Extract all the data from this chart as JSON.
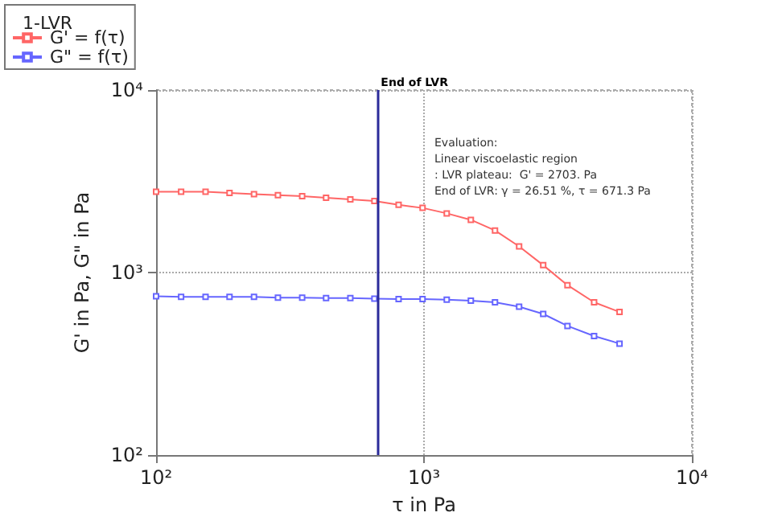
{
  "chart_data": {
    "type": "line",
    "xlabel": "τ in Pa",
    "ylabel": "G' in Pa, G\" in Pa",
    "legend_title": "1-LVR",
    "legend": "top left",
    "log": "xy",
    "grid": true,
    "marker": "square",
    "line_style": "solid",
    "x": [
      100,
      124,
      153,
      188,
      232,
      285,
      351,
      431,
      531,
      653,
      804,
      988,
      1216,
      1496,
      1841,
      2265,
      2786,
      3432,
      4315,
      5370
    ],
    "xlim": [
      100,
      10000
    ],
    "xticks": [
      {
        "value": 100,
        "label": "10²"
      },
      {
        "value": 1000,
        "label": "10³"
      },
      {
        "value": 10000,
        "label": "10⁴"
      }
    ],
    "ylim": [
      100,
      10000
    ],
    "yticks": [
      {
        "value": 100,
        "label": "10²"
      },
      {
        "value": 1000,
        "label": "10³"
      },
      {
        "value": 10000,
        "label": "10⁴"
      }
    ],
    "series": [
      {
        "name": "G' = f(τ)",
        "color": "#ff6666",
        "values": [
          2770,
          2770,
          2770,
          2730,
          2690,
          2655,
          2620,
          2570,
          2520,
          2465,
          2350,
          2260,
          2110,
          1945,
          1700,
          1390,
          1097,
          853,
          687,
          608
        ]
      },
      {
        "name": "G\" = f(τ)",
        "color": "#6666ff",
        "values": [
          741,
          735,
          735,
          735,
          735,
          729,
          729,
          724,
          724,
          719,
          716,
          716,
          711,
          702,
          687,
          650,
          593,
          510,
          449,
          408
        ]
      }
    ],
    "ref_lines": [
      {
        "axis": "x",
        "value": 671.3,
        "label": "End of LVR",
        "color": "#2a2a9a",
        "line_style": "solid"
      }
    ],
    "annotations": [
      "Evaluation:",
      "Linear viscoelastic region",
      ": LVR plateau:  G' = 2703. Pa",
      "End of LVR: γ = 26.51 %, τ = 671.3 Pa"
    ]
  }
}
